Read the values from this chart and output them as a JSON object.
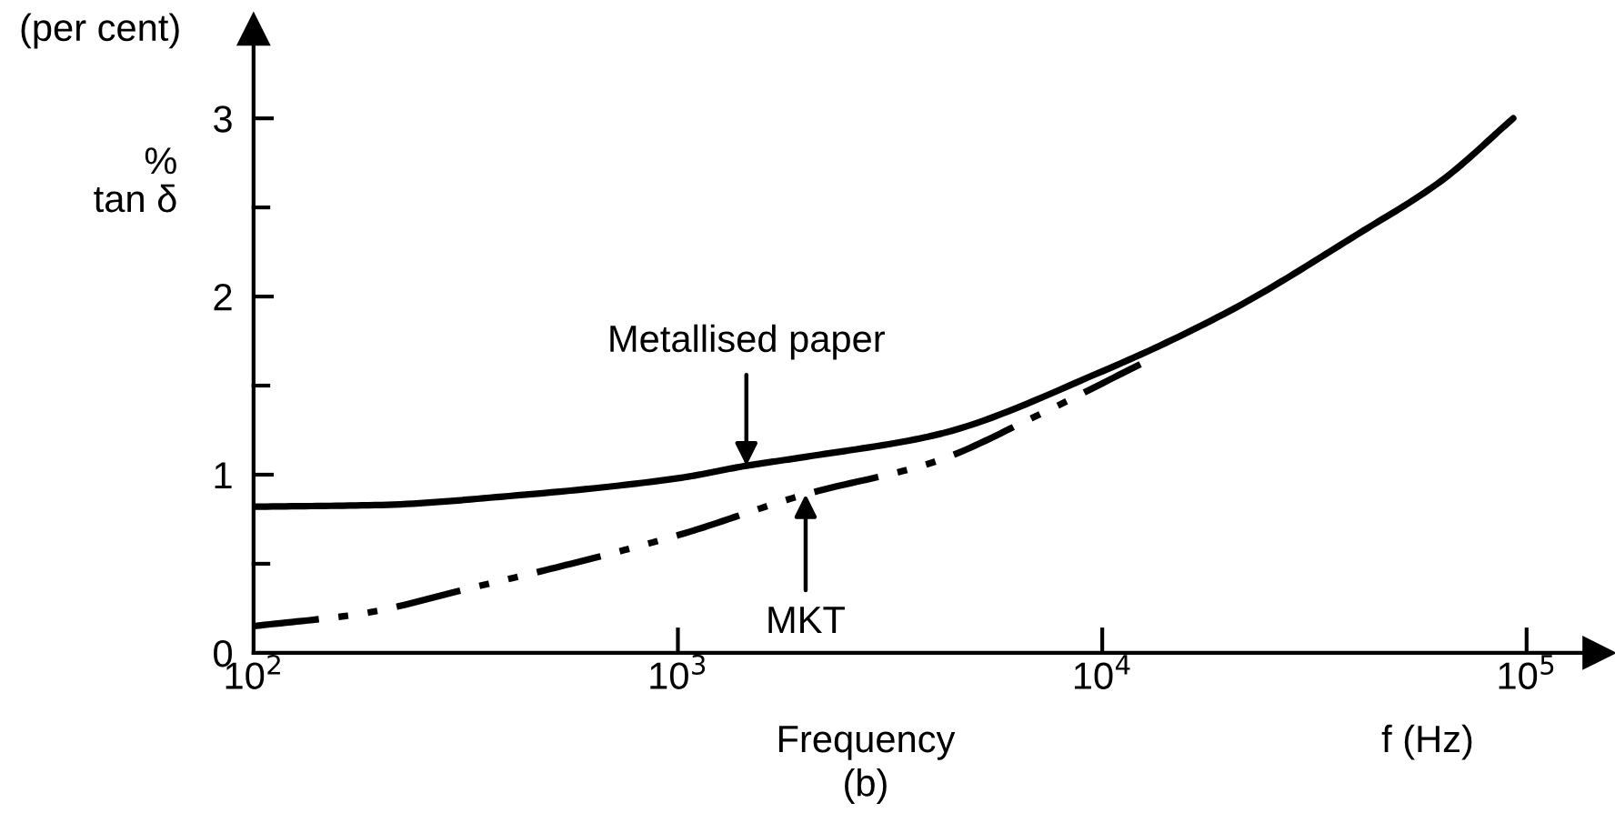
{
  "chart_data": {
    "type": "line",
    "xlabel": "Frequency",
    "ylabel": "%\ntan δ",
    "annotations": [
      "(per cent)",
      "f (Hz)",
      "(b)"
    ],
    "log": "x",
    "grid": false,
    "legend": false,
    "marker": "none",
    "xlim": [
      100,
      148000
    ],
    "xticks": [
      {
        "value": 100,
        "label": "10$^{2}$"
      },
      {
        "value": 1000,
        "label": "10$^{3}$"
      },
      {
        "value": 10000,
        "label": "10$^{4}$"
      },
      {
        "value": 100000,
        "label": "10$^{5}$"
      }
    ],
    "ylim": [
      0,
      3.5
    ],
    "yticks": [
      0,
      {
        "value": 0.5,
        "label": null
      },
      1,
      {
        "value": 1.5,
        "label": null
      },
      2,
      {
        "value": 2.5,
        "label": null
      },
      3
    ],
    "series": [
      {
        "name": "Metallised paper",
        "color": "#000000",
        "line_style": "solid",
        "x": [
          100,
          200,
          400,
          1000,
          1450,
          2000,
          4000,
          10000,
          20000,
          40000,
          63000,
          93000
        ],
        "values": [
          0.82,
          0.83,
          0.88,
          0.98,
          1.05,
          1.1,
          1.22,
          1.58,
          1.92,
          2.35,
          2.65,
          3.0
        ]
      },
      {
        "name": "MKT",
        "color": "#000000",
        "line_style": "dashed",
        "x": [
          100,
          180,
          320,
          560,
          1000,
          2000,
          4000,
          7000,
          12300
        ],
        "values": [
          0.15,
          0.22,
          0.36,
          0.5,
          0.66,
          0.89,
          1.07,
          1.33,
          1.62
        ]
      }
    ]
  }
}
